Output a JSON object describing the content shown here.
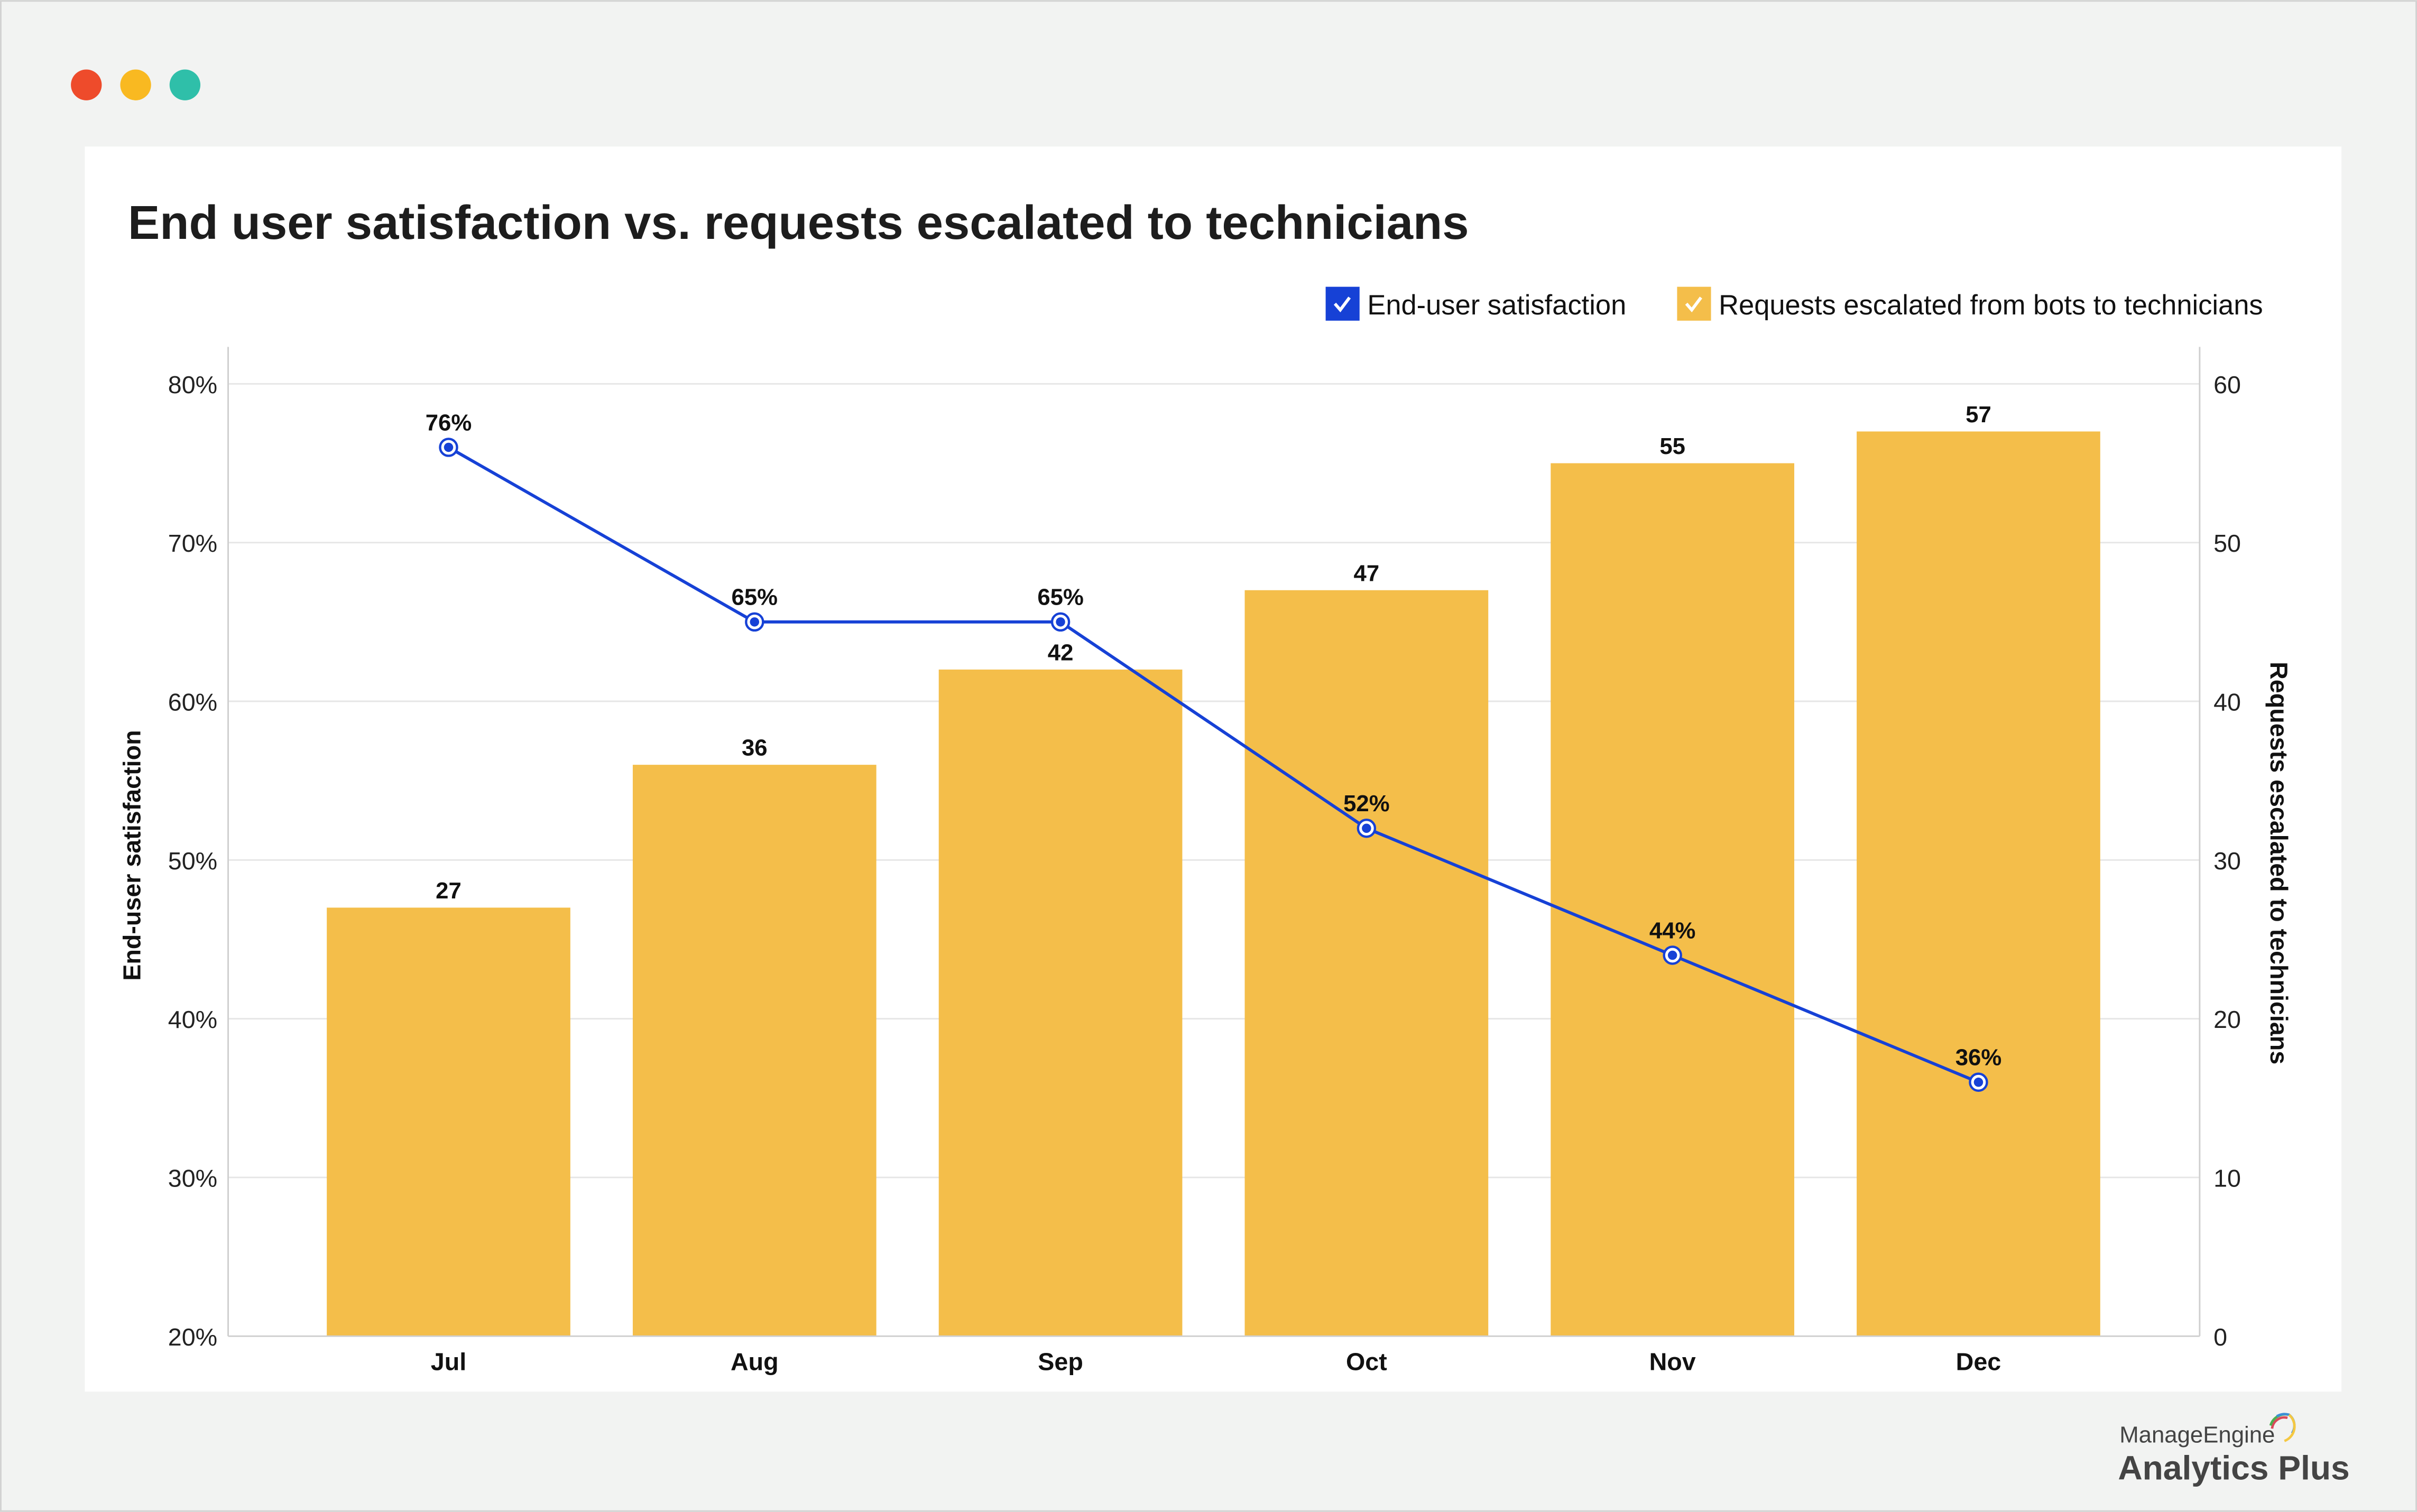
{
  "window": {
    "controls": [
      "close",
      "minimize",
      "maximize"
    ],
    "control_colors": [
      "#ee4b2b",
      "#f9b921",
      "#2fbfa9"
    ]
  },
  "branding": {
    "line1": "ManageEngine",
    "line2": "Analytics Plus"
  },
  "chart_data": {
    "type": "bar+line",
    "title": "End user satisfaction vs. requests escalated to technicians",
    "categories": [
      "Jul",
      "Aug",
      "Sep",
      "Oct",
      "Nov",
      "Dec"
    ],
    "series": [
      {
        "name": "End-user satisfaction",
        "type": "line",
        "axis": "left",
        "color": "#1641d6",
        "values": [
          76,
          65,
          65,
          52,
          44,
          36
        ],
        "labels": [
          "76%",
          "65%",
          "65%",
          "52%",
          "44%",
          "36%"
        ]
      },
      {
        "name": "Requests escalated from bots to technicians",
        "type": "bar",
        "axis": "right",
        "color": "#f4be4a",
        "values": [
          27,
          36,
          42,
          47,
          55,
          57
        ],
        "labels": [
          "27",
          "36",
          "42",
          "47",
          "55",
          "57"
        ]
      }
    ],
    "y_left": {
      "label": "End-user satisfaction",
      "range": [
        20,
        80
      ],
      "ticks": [
        "20%",
        "30%",
        "40%",
        "50%",
        "60%",
        "70%",
        "80%"
      ]
    },
    "y_right": {
      "label": "Requests escalated to technicians",
      "range": [
        0,
        60
      ],
      "ticks": [
        "0",
        "10",
        "20",
        "30",
        "40",
        "50",
        "60"
      ]
    },
    "grid": true,
    "legend_position": "top-right"
  }
}
